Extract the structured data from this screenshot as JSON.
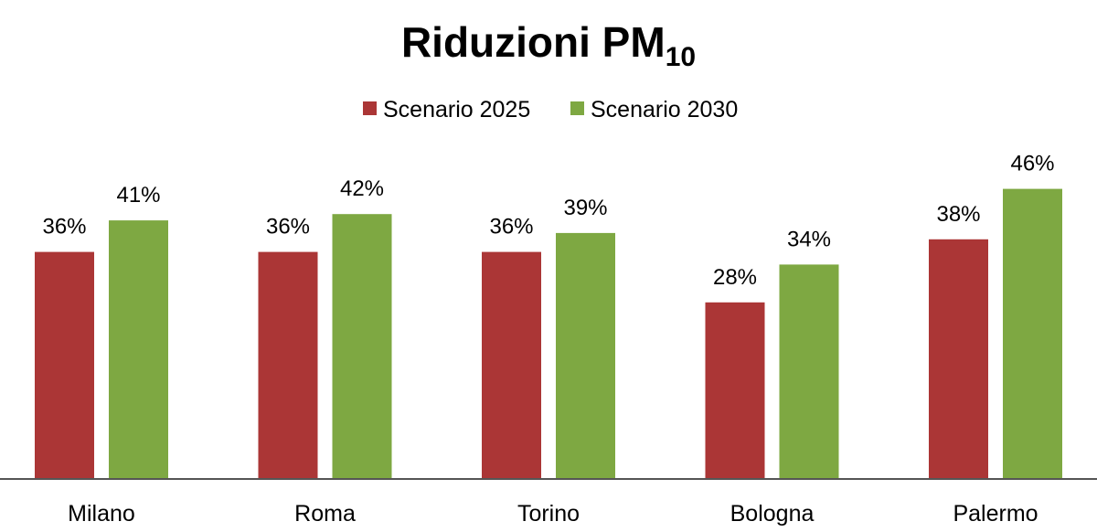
{
  "chart_data": {
    "type": "bar",
    "title": "Riduzioni PM",
    "title_subscript": "10",
    "categories": [
      "Milano",
      "Roma",
      "Torino",
      "Bologna",
      "Palermo"
    ],
    "series": [
      {
        "name": "Scenario 2025",
        "color": "#ab3636",
        "values": [
          36,
          36,
          36,
          28,
          38
        ],
        "labels": [
          "36%",
          "36%",
          "36%",
          "28%",
          "38%"
        ]
      },
      {
        "name": "Scenario 2030",
        "color": "#7ea842",
        "values": [
          41,
          42,
          39,
          34,
          46
        ],
        "labels": [
          "41%",
          "42%",
          "39%",
          "34%",
          "46%"
        ]
      }
    ],
    "ylim": [
      0,
      50
    ],
    "grid": false,
    "legend": "top-center",
    "axis_color": "#555555"
  }
}
